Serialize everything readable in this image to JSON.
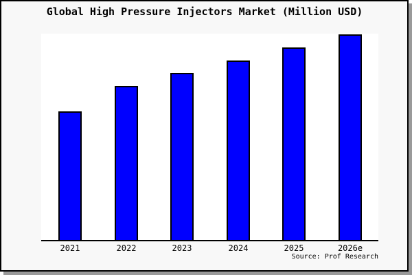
{
  "window": {
    "background": "#ffffff",
    "card_background": "#f8f8f8",
    "frame_border_color": "#000000",
    "shadow_color": "#9a9a9a"
  },
  "chart_data": {
    "type": "bar",
    "title": "Global High Pressure Injectors Market (Million USD)",
    "categories": [
      "2021",
      "2022",
      "2023",
      "2024",
      "2025",
      "2026e"
    ],
    "values_relative": [
      62.5,
      74.9,
      81.3,
      87.3,
      93.6,
      100
    ],
    "values_note": "no y-axis ticks, gridlines or data labels shown; values are bar heights normalized to tallest bar (2026e) = 100",
    "xlabel": "",
    "ylabel": "",
    "legend_position": "none",
    "grid": false,
    "bar_fill": "#0000ff",
    "bar_border": "#000000",
    "plot_background": "#ffffff",
    "source_note": "Source: Prof Research"
  }
}
